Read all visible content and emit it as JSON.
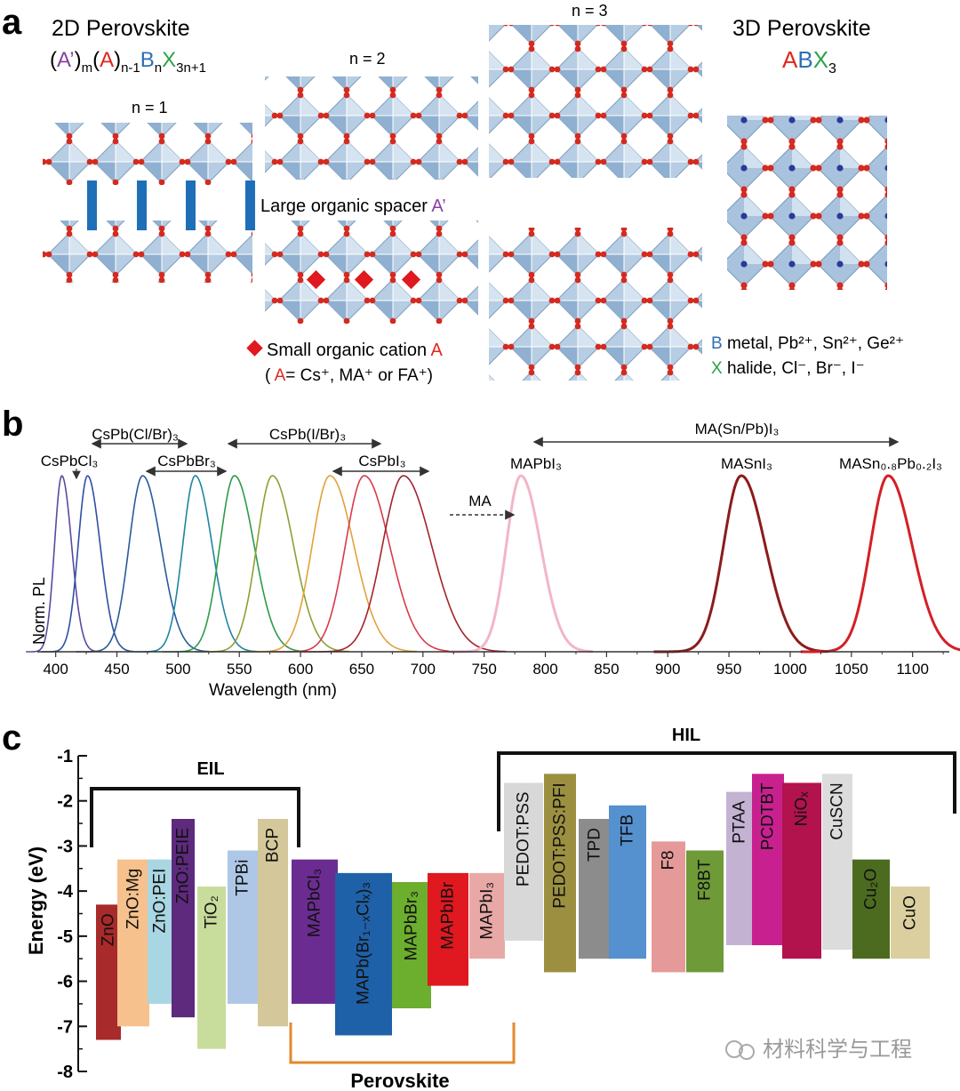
{
  "panel_a": {
    "letter": "a",
    "title_2d": "2D Perovskite",
    "formula_2d": {
      "p1": "(",
      "a_prime": "A’",
      "p2": ")",
      "m": "m",
      "p3": "(",
      "a": "A",
      "p4": ")",
      "n1": "n-1",
      "b": "B",
      "n": "n",
      "x": "X",
      "x_sub": "3n+1"
    },
    "n1_label": "n = 1",
    "n2_label": "n = 2",
    "n3_label": "n = 3",
    "title_3d": "3D Perovskite",
    "formula_3d": {
      "a": "A",
      "b": "B",
      "x": "X",
      "sub": "3"
    },
    "spacer_label": "Large organic spacer",
    "spacer_symbol": "A’",
    "cation_label": "Small organic cation",
    "cation_symbol": "A",
    "cation_examples_open": "( ",
    "cation_examples_a": "A",
    "cation_examples_rest": "= Cs⁺, MA⁺ or FA⁺)",
    "b_letter": "B",
    "b_desc": "metal, Pb²⁺, Sn²⁺, Ge²⁺",
    "x_letter": "X",
    "x_desc": "halide, Cl⁻, Br⁻, I⁻",
    "colors": {
      "purple": "#8a3fa6",
      "red": "#e0261e",
      "blue": "#2e6fb5",
      "green": "#2ba24a"
    }
  },
  "panel_b": {
    "letter": "b",
    "labels": {
      "cspb_clbr": "CsPb(Cl/Br)₃",
      "cspb_ibr": "CsPb(I/Br)₃",
      "cspbcl3": "CsPbCl₃",
      "cspbbr3": "CsPbBr₃",
      "cspbi3": "CsPbI₃",
      "ma_snpb": "MA(Sn/Pb)I₃",
      "mapbi3": "MAPbI₃",
      "masni3": "MASnI₃",
      "masnpb": "MASn₀.₈Pb₀.₂I₃",
      "ma_arrow": "MA"
    }
  },
  "panel_c": {
    "letter": "c",
    "eil_label": "EIL",
    "hil_label": "HIL",
    "perovskite_label": "Perovskite"
  },
  "watermark": "材料科学与工程",
  "chart_data": [
    {
      "type": "line",
      "xlabel": "Wavelength (nm)",
      "ylabel": "Norm. PL",
      "x_ticks": [
        400,
        450,
        500,
        550,
        600,
        650,
        700,
        750,
        800,
        850,
        900,
        950,
        1000,
        1050,
        1100
      ],
      "xlim": [
        385,
        1130
      ],
      "series": [
        {
          "center": 405,
          "width": 7,
          "color": "#5b4a9e"
        },
        {
          "center": 426,
          "width": 9,
          "color": "#2f4fa3"
        },
        {
          "center": 471,
          "width": 13,
          "color": "#2a5b9c"
        },
        {
          "center": 514,
          "width": 12,
          "color": "#1f86a0"
        },
        {
          "center": 546,
          "width": 14,
          "color": "#2e9b4a"
        },
        {
          "center": 577,
          "width": 15,
          "color": "#8aa137"
        },
        {
          "center": 624,
          "width": 17,
          "color": "#e1a23a"
        },
        {
          "center": 652,
          "width": 18,
          "color": "#d83a4a"
        },
        {
          "center": 684,
          "width": 20,
          "color": "#a3232c"
        },
        {
          "center": 780,
          "width": 14,
          "color": "#f2b6c6"
        },
        {
          "center": 960,
          "width": 17,
          "color": "#8b1c1c"
        },
        {
          "center": 1080,
          "width": 17,
          "color": "#d41f26"
        }
      ]
    },
    {
      "type": "bar",
      "ylabel": "Energy (eV)",
      "ylim": [
        -8,
        -1
      ],
      "y_ticks": [
        -1,
        -2,
        -3,
        -4,
        -5,
        -6,
        -7,
        -8
      ],
      "categories": [
        "ZnO",
        "ZnO:Mg",
        "ZnO:PEI",
        "ZnO:PEIE",
        "TiO₂",
        "TPBi",
        "BCP",
        "MAPbCl₃",
        "MAPb(Br₁₋ₓClₓ)₃",
        "MAPbBr₃",
        "MAPbIBr",
        "MAPbI₃",
        "PEDOT:PSS",
        "PEDOT:PSS:PFI",
        "TPD",
        "TFB",
        "F8",
        "F8BT",
        "PTAA",
        "PCDTBT",
        "NiOₓ",
        "CuSCN",
        "Cu₂O",
        "CuO"
      ],
      "series": [
        {
          "name": "",
          "values": [
            [
              -4.3,
              -7.3
            ],
            [
              -3.3,
              -7.0
            ],
            [
              -3.3,
              -6.5
            ],
            [
              -2.4,
              -6.8
            ],
            [
              -3.9,
              -7.5
            ],
            [
              -3.1,
              -6.5
            ],
            [
              -2.4,
              -7.0
            ],
            [
              -3.3,
              -6.5
            ],
            [
              -3.6,
              -7.2
            ],
            [
              -3.8,
              -6.6
            ],
            [
              -3.6,
              -6.1
            ],
            [
              -3.6,
              -5.5
            ],
            [
              -1.6,
              -5.1
            ],
            [
              -1.4,
              -5.8
            ],
            [
              -2.4,
              -5.5
            ],
            [
              -2.1,
              -5.5
            ],
            [
              -2.9,
              -5.8
            ],
            [
              -3.1,
              -5.8
            ],
            [
              -1.8,
              -5.2
            ],
            [
              -1.4,
              -5.2
            ],
            [
              -1.6,
              -5.5
            ],
            [
              -1.4,
              -5.3
            ],
            [
              -3.3,
              -5.5
            ],
            [
              -3.9,
              -5.5
            ]
          ]
        }
      ],
      "colors": [
        "#a82a2a",
        "#f6c18c",
        "#a9d6e3",
        "#5d2a7d",
        "#c8dd9c",
        "#aec7e6",
        "#d4c89a",
        "#6b2c91",
        "#1f61a8",
        "#6cae2d",
        "#e0181f",
        "#e8a9a6",
        "#d8d8d8",
        "#9c9040",
        "#8c8c8c",
        "#5590cf",
        "#e59a99",
        "#6e9a37",
        "#c4b2d3",
        "#c8218f",
        "#b3134d",
        "#dcdcdc",
        "#4c6b1f",
        "#dccf9f"
      ]
    }
  ]
}
